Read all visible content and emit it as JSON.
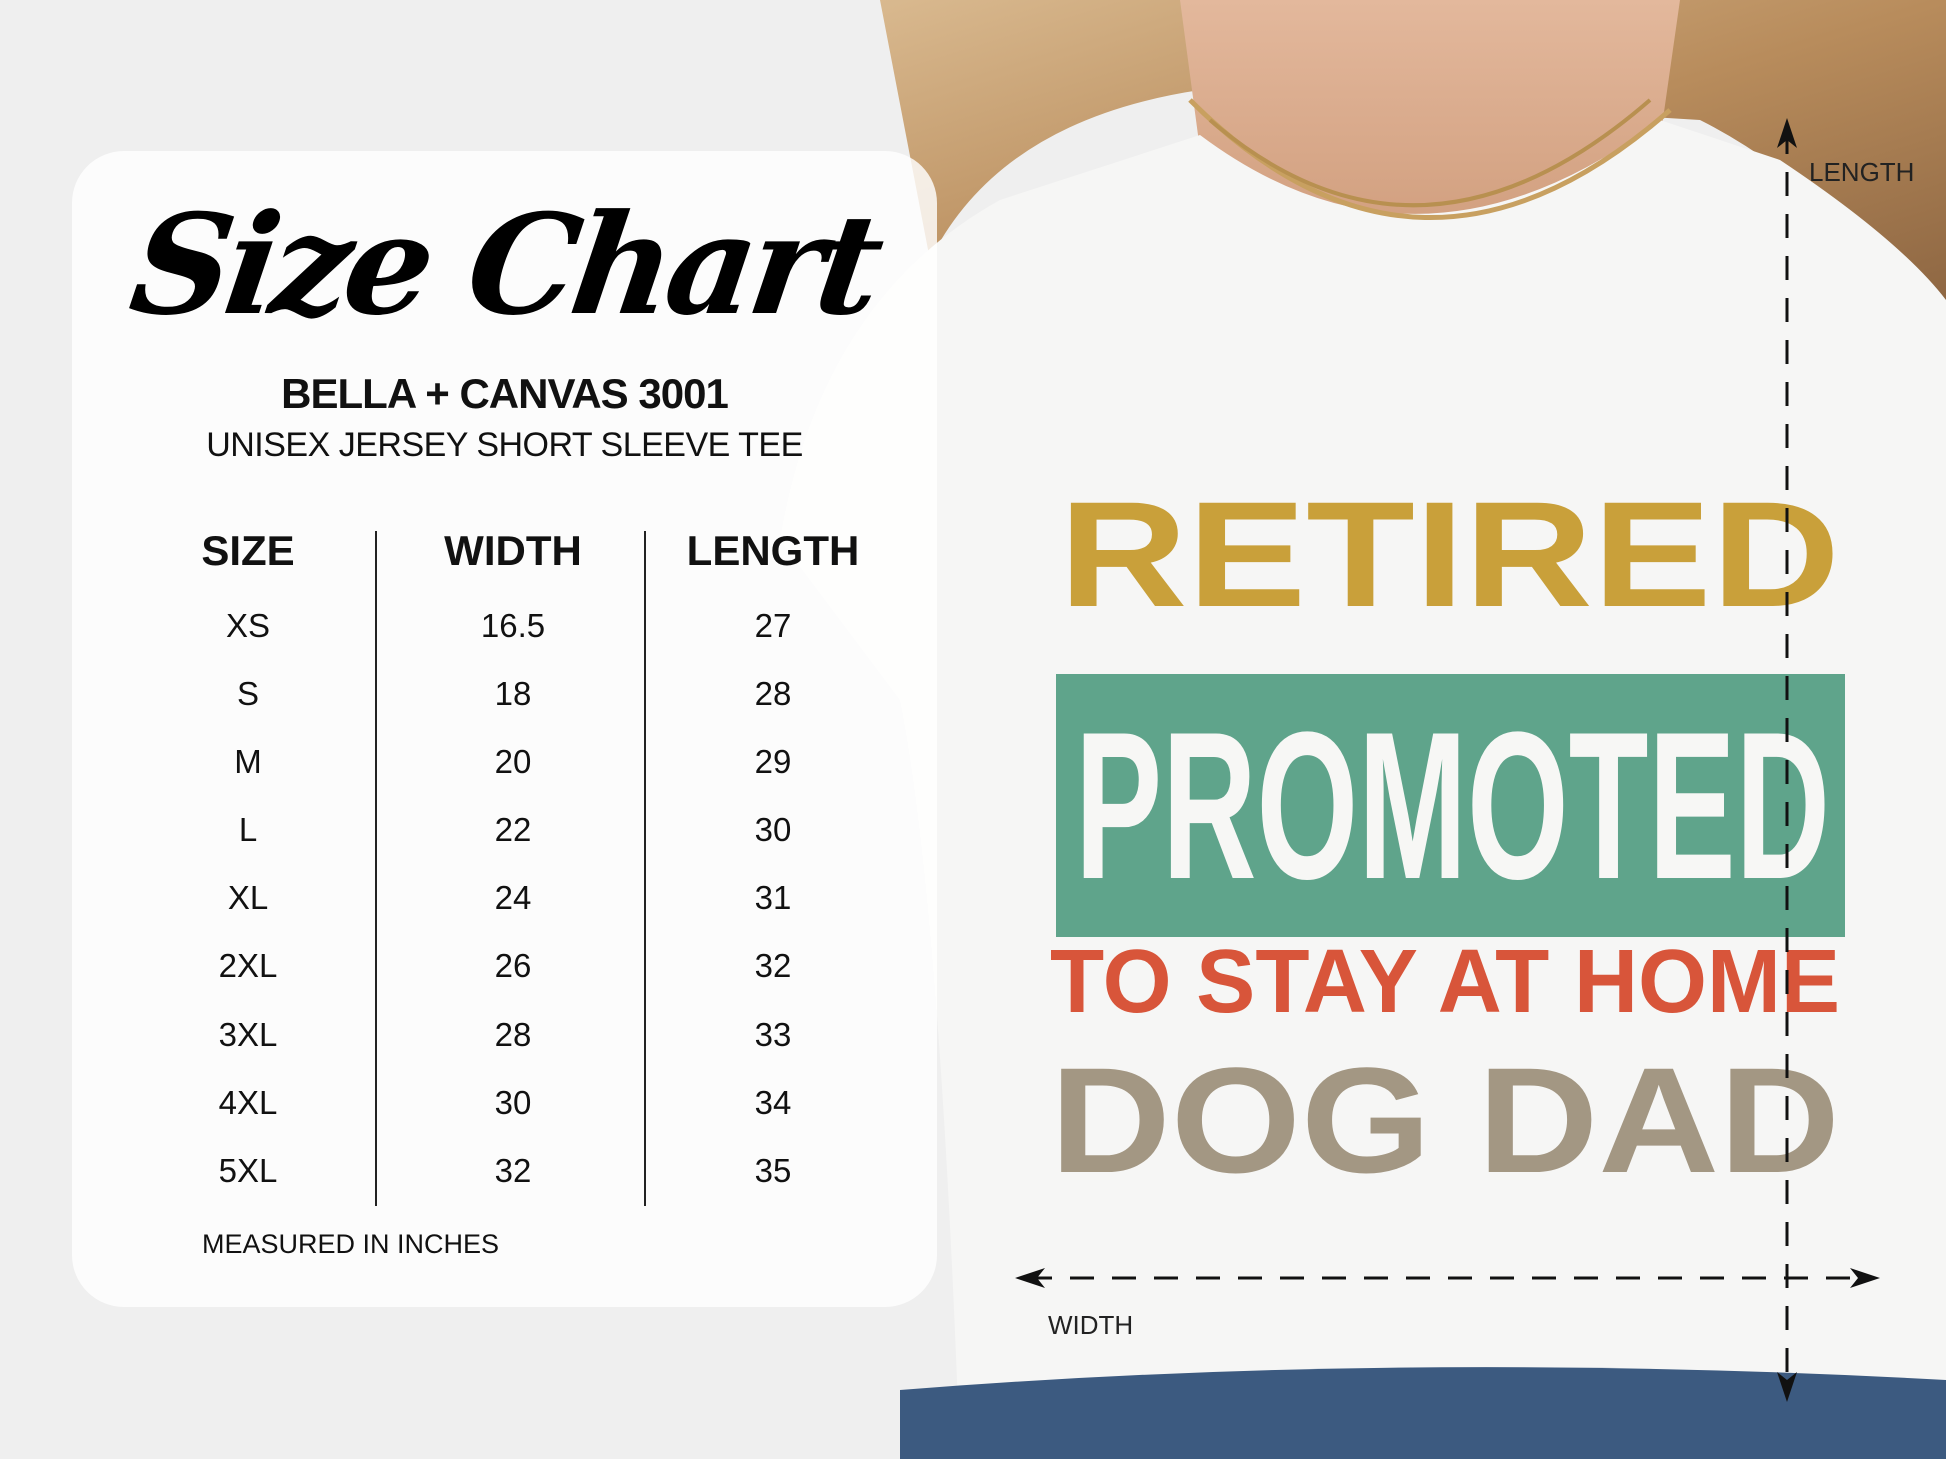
{
  "chart": {
    "title": "Size Chart",
    "brand": "BELLA + CANVAS 3001",
    "product": "UNISEX JERSEY SHORT SLEEVE TEE",
    "headers": [
      "SIZE",
      "WIDTH",
      "LENGTH"
    ],
    "sizes": [
      "XS",
      "S",
      "M",
      "L",
      "XL",
      "2XL",
      "3XL",
      "4XL",
      "5XL"
    ],
    "widths": [
      "16.5",
      "18",
      "20",
      "22",
      "24",
      "26",
      "28",
      "30",
      "32"
    ],
    "lengths": [
      "27",
      "28",
      "29",
      "30",
      "31",
      "32",
      "33",
      "34",
      "35"
    ],
    "note": "MEASURED IN INCHES"
  },
  "shirt_design": {
    "line1": "RETIRED",
    "line2": "PROMOTED",
    "line3": "TO STAY AT HOME",
    "line4": "DOG DAD",
    "colors": {
      "gold": "#c9a03a",
      "green": "#5fa48b",
      "red": "#d8553a",
      "taupe": "#a39783"
    }
  },
  "dimensions": {
    "length_label": "LENGTH",
    "width_label": "WIDTH"
  }
}
